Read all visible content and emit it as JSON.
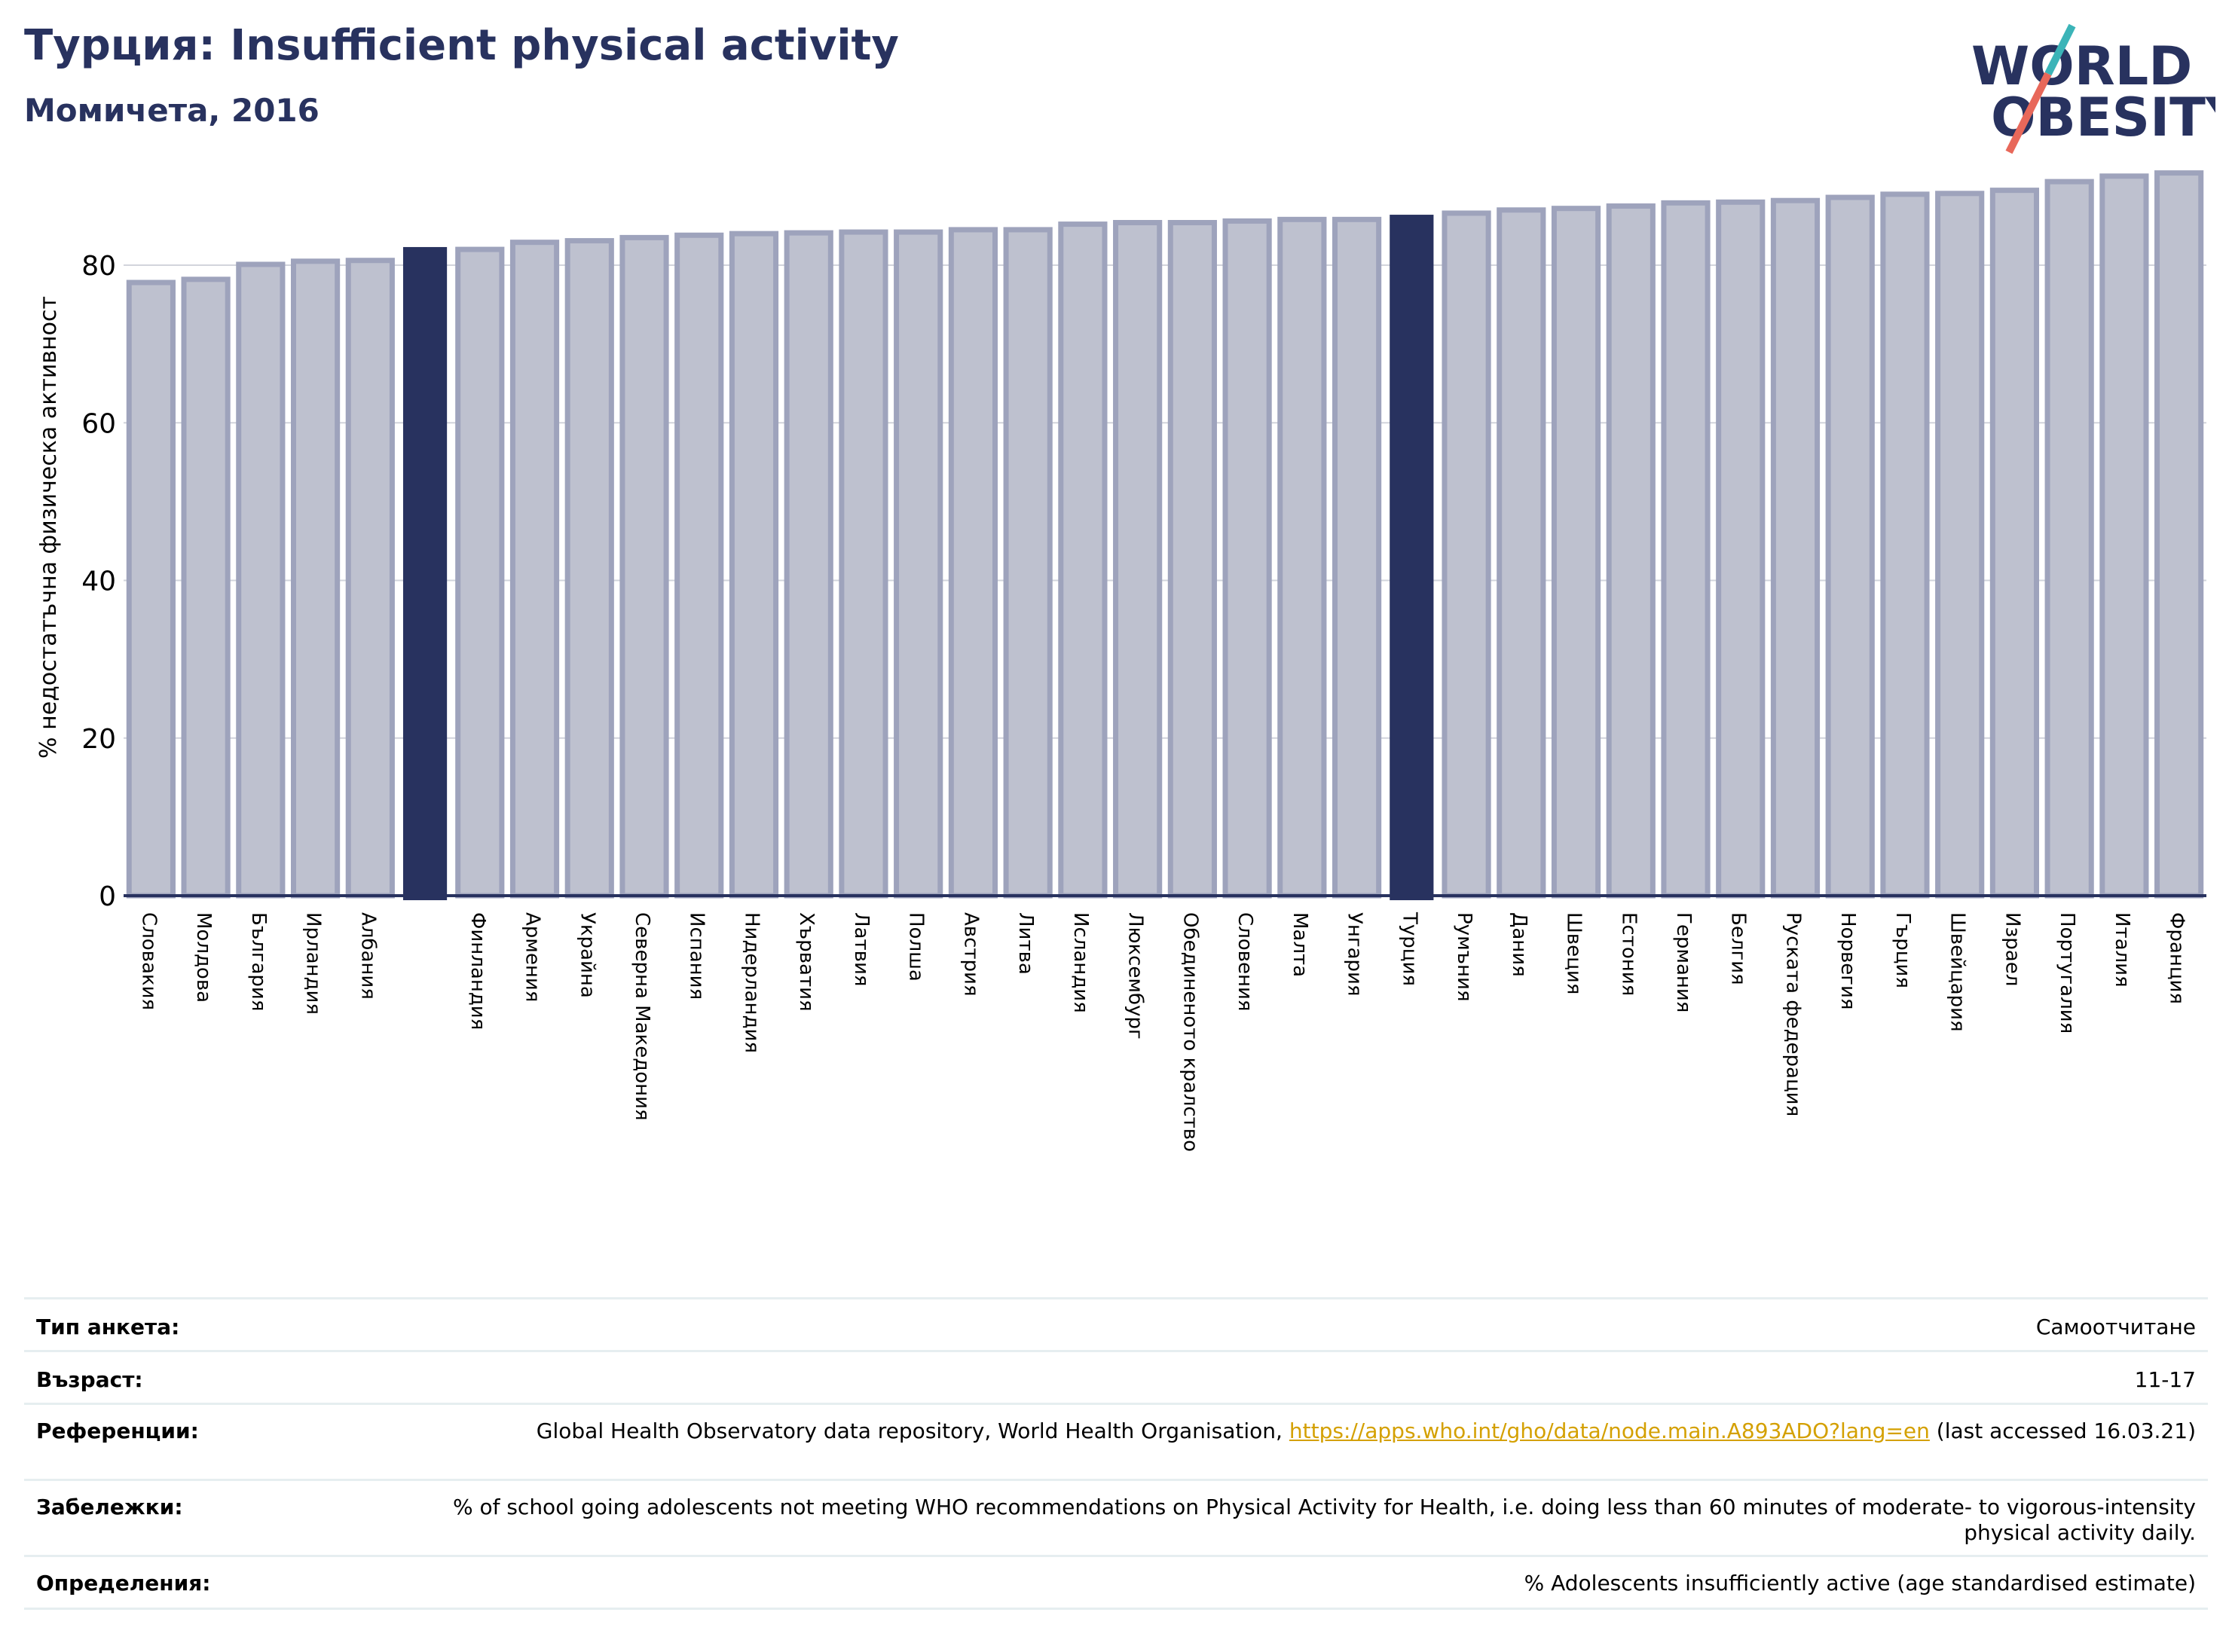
{
  "header": {
    "title": "Турция: Insufficient physical activity",
    "subtitle": "Момичета, 2016"
  },
  "logo": {
    "line1": "WORLD",
    "line2": "OBESITY",
    "colors": {
      "text": "#28325f",
      "slash_top": "#3bb4b8",
      "slash_bottom": "#e8685a"
    }
  },
  "chart_data": {
    "type": "bar",
    "title": "",
    "xlabel": "",
    "ylabel": "% недостатъчна физическа активност",
    "ylim": [
      0,
      93
    ],
    "yticks": [
      0,
      20,
      40,
      60,
      80
    ],
    "grid": true,
    "categories": [
      "Словакия",
      "Молдова",
      "България",
      "Ирландия",
      "Албания",
      "",
      "Финландия",
      "Армения",
      "Украйна",
      "Северна Македония",
      "Испания",
      "Нидерландия",
      "Хърватия",
      "Латвия",
      "Полша",
      "Австрия",
      "Литва",
      "Исландия",
      "Люксембург",
      "Обединеното кралство",
      "Словения",
      "Малта",
      "Унгария",
      "Турция",
      "Румъния",
      "Дания",
      "Швеция",
      "Естония",
      "Германия",
      "Белгия",
      "Руската федерация",
      "Норвегия",
      "Гърция",
      "Швейцария",
      "Израел",
      "Португалия",
      "Италия",
      "Франция"
    ],
    "values": [
      77.8,
      78.2,
      80.1,
      80.5,
      80.6,
      82.3,
      82.0,
      82.9,
      83.1,
      83.5,
      83.8,
      84.0,
      84.1,
      84.2,
      84.2,
      84.5,
      84.5,
      85.2,
      85.4,
      85.4,
      85.6,
      85.8,
      85.8,
      86.4,
      86.6,
      87.0,
      87.2,
      87.5,
      87.9,
      88.0,
      88.2,
      88.6,
      89.0,
      89.1,
      89.5,
      90.6,
      91.3,
      91.7
    ],
    "highlight": [
      5,
      23
    ],
    "colors": {
      "bar": "#bec1cf",
      "bar_edge": "#9ea3bc",
      "highlight": "#28325f",
      "axis": "#28325f",
      "grid": "#d2d4dc"
    }
  },
  "info": {
    "rows": [
      {
        "label": "Тип анкета:",
        "value": "Самоотчитане"
      },
      {
        "label": "Възраст:",
        "value": "11-17"
      },
      {
        "label": "Референции:",
        "value": "Global Health Observatory data repository, World Health Organisation,",
        "link": "https://apps.who.int/gho/data/node.main.A893ADO?lang=en",
        "value_after": "(last accessed 16.03.21)"
      },
      {
        "label": "Забележки:",
        "value": "% of school going adolescents not meeting WHO recommendations on Physical Activity for Health, i.e. doing less than 60 minutes of moderate- to vigorous-intensity physical activity daily."
      },
      {
        "label": "Определения:",
        "value": "% Adolescents insufficiently active (age standardised estimate)"
      }
    ],
    "colors": {
      "link": "#d4a000",
      "divider": "#e6eef0"
    }
  }
}
